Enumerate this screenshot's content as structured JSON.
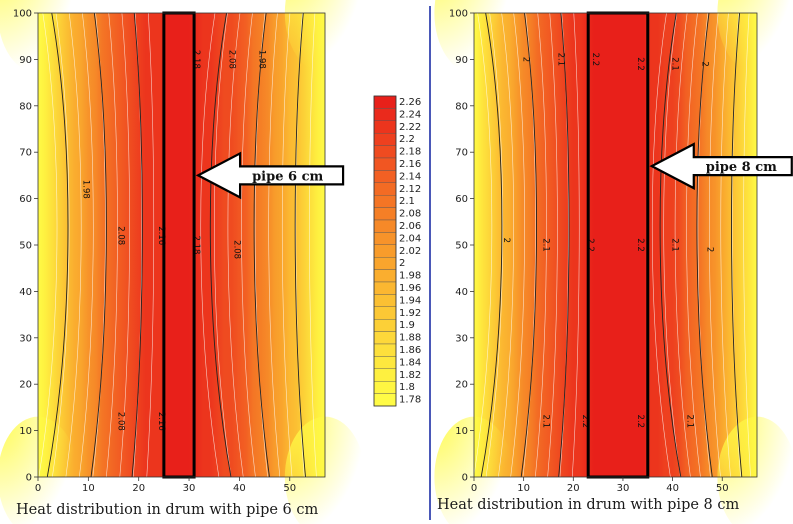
{
  "chart_data": [
    {
      "type": "heatmap",
      "caption": "Heat distribution in drum with pipe 6 cm",
      "xlim": [
        0,
        57
      ],
      "ylim": [
        0,
        100
      ],
      "xticks": [
        0,
        10,
        20,
        30,
        40,
        50
      ],
      "yticks": [
        0,
        10,
        20,
        30,
        40,
        50,
        60,
        70,
        80,
        90,
        100
      ],
      "pipe": {
        "label": "pipe 6 cm",
        "x_start": 25,
        "x_end": 31,
        "arrow_y": 65
      },
      "contour_labels": [
        {
          "text": "2.18",
          "x": 31,
          "y": 90
        },
        {
          "text": "2.08",
          "x": 38,
          "y": 90
        },
        {
          "text": "1.98",
          "x": 44,
          "y": 90
        },
        {
          "text": "1.98",
          "x": 9,
          "y": 62
        },
        {
          "text": "2.08",
          "x": 16,
          "y": 52
        },
        {
          "text": "2.16",
          "x": 24,
          "y": 52
        },
        {
          "text": "2.18",
          "x": 31,
          "y": 50
        },
        {
          "text": "2.08",
          "x": 39,
          "y": 49
        },
        {
          "text": "2.08",
          "x": 16,
          "y": 12
        },
        {
          "text": "2.16",
          "x": 24,
          "y": 12
        }
      ]
    },
    {
      "type": "heatmap",
      "caption": "Heat distribution in drum with pipe 8 cm",
      "xlim": [
        0,
        57
      ],
      "ylim": [
        0,
        100
      ],
      "xticks": [
        0,
        10,
        20,
        30,
        40,
        50
      ],
      "yticks": [
        0,
        10,
        20,
        30,
        40,
        50,
        60,
        70,
        80,
        90,
        100
      ],
      "pipe": {
        "label": "pipe 8 cm",
        "x_start": 23,
        "x_end": 35,
        "arrow_y": 67
      },
      "contour_labels": [
        {
          "text": "2",
          "x": 10,
          "y": 90
        },
        {
          "text": "2.1",
          "x": 17,
          "y": 90
        },
        {
          "text": "2.2",
          "x": 24,
          "y": 90
        },
        {
          "text": "2.2",
          "x": 33,
          "y": 89
        },
        {
          "text": "2.1",
          "x": 40,
          "y": 89
        },
        {
          "text": "2",
          "x": 46,
          "y": 89
        },
        {
          "text": "2",
          "x": 6,
          "y": 51
        },
        {
          "text": "2.1",
          "x": 14,
          "y": 50
        },
        {
          "text": "2.2",
          "x": 23,
          "y": 50
        },
        {
          "text": "2.2",
          "x": 33,
          "y": 50
        },
        {
          "text": "2.1",
          "x": 40,
          "y": 50
        },
        {
          "text": "2",
          "x": 47,
          "y": 49
        },
        {
          "text": "2.1",
          "x": 14,
          "y": 12
        },
        {
          "text": "2.2",
          "x": 22,
          "y": 12
        },
        {
          "text": "2.2",
          "x": 33,
          "y": 12
        },
        {
          "text": "2.1",
          "x": 43,
          "y": 12
        }
      ]
    }
  ],
  "legend": {
    "levels": [
      "2.26",
      "2.24",
      "2.22",
      "2.2",
      "2.18",
      "2.16",
      "2.14",
      "2.12",
      "2.1",
      "2.08",
      "2.06",
      "2.04",
      "2.02",
      "2",
      "1.98",
      "1.96",
      "1.94",
      "1.92",
      "1.9",
      "1.88",
      "1.86",
      "1.84",
      "1.82",
      "1.8",
      "1.78"
    ],
    "colors": [
      "#e8201a",
      "#ea2a1c",
      "#ec351d",
      "#ee401f",
      "#ef4b20",
      "#f15622",
      "#f26023",
      "#f36b24",
      "#f47525",
      "#f57f26",
      "#f68928",
      "#f7932a",
      "#f89c2b",
      "#f9a52d",
      "#faae2f",
      "#fbb731",
      "#fbc033",
      "#fcc835",
      "#fcd037",
      "#fdd83a",
      "#fde03c",
      "#fee83e",
      "#fef040",
      "#fff642",
      "#fffb46"
    ]
  }
}
